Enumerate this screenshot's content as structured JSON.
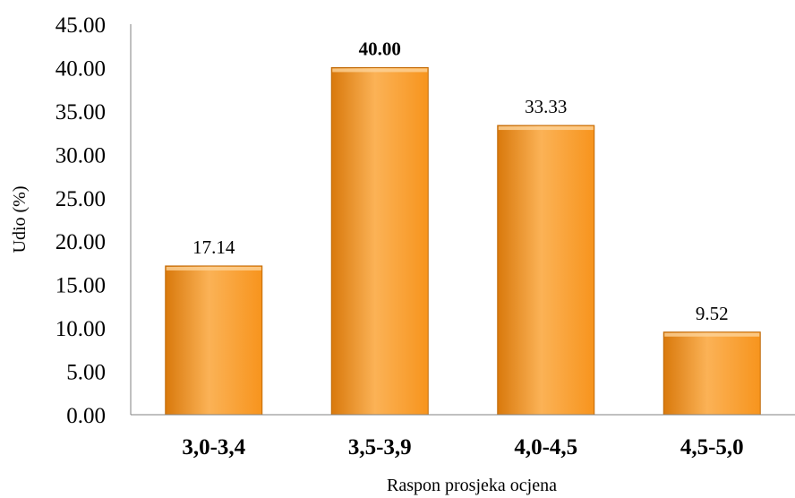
{
  "chart_data": {
    "type": "bar",
    "title": "",
    "xlabel": "Raspon prosjeka ocjena",
    "ylabel": "Udio (%)",
    "categories": [
      "3,0-3,4",
      "3,5-3,9",
      "4,0-4,5",
      "4,5-5,0"
    ],
    "values": [
      17.14,
      40.0,
      33.33,
      9.52
    ],
    "data_labels": [
      "17.14",
      "40.00",
      "33.33",
      "9.52"
    ],
    "highlighted_label_index": 1,
    "ylim": [
      0,
      45
    ],
    "yticks": [
      "0.00",
      "5.00",
      "10.00",
      "15.00",
      "20.00",
      "25.00",
      "30.00",
      "35.00",
      "40.00",
      "45.00"
    ],
    "grid": false,
    "legend": "none",
    "bar_color": "#f7941d",
    "bar_color_light": "#fbb256",
    "bar_color_dark": "#d9790c"
  }
}
